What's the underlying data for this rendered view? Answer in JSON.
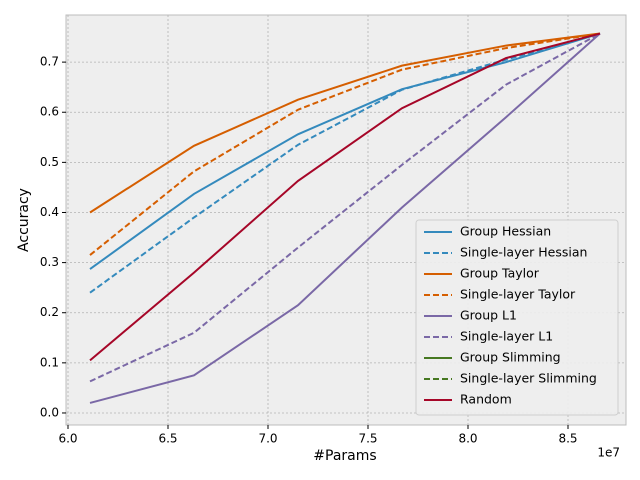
{
  "chart_data": {
    "type": "line",
    "xlabel": "#Params",
    "ylabel": "Accuracy",
    "x_offset_label": "1e7",
    "x": [
      61100000,
      66300000,
      71500000,
      76700000,
      81900000,
      86600000
    ],
    "series": [
      {
        "name": "Group Hessian",
        "color": "#348abd",
        "linestyle": "solid",
        "values": [
          0.287,
          0.437,
          0.556,
          0.646,
          0.7,
          0.757
        ]
      },
      {
        "name": "Single-layer Hessian",
        "color": "#348abd",
        "linestyle": "dashed",
        "values": [
          0.24,
          0.39,
          0.535,
          0.645,
          0.705,
          0.757
        ]
      },
      {
        "name": "Group Taylor",
        "color": "#d55e00",
        "linestyle": "solid",
        "values": [
          0.4,
          0.533,
          0.625,
          0.693,
          0.733,
          0.757
        ]
      },
      {
        "name": "Single-layer Taylor",
        "color": "#d55e00",
        "linestyle": "dashed",
        "values": [
          0.315,
          0.482,
          0.605,
          0.685,
          0.728,
          0.757
        ]
      },
      {
        "name": "Group L1",
        "color": "#7a68a6",
        "linestyle": "solid",
        "values": [
          0.02,
          0.075,
          0.215,
          0.41,
          0.59,
          0.757
        ]
      },
      {
        "name": "Single-layer L1",
        "color": "#7a68a6",
        "linestyle": "dashed",
        "values": [
          0.063,
          0.16,
          0.33,
          0.495,
          0.655,
          0.757
        ]
      },
      {
        "name": "Group Slimming",
        "color": "#467821",
        "linestyle": "solid",
        "values": [
          null,
          null,
          null,
          null,
          null,
          null
        ]
      },
      {
        "name": "Single-layer Slimming",
        "color": "#467821",
        "linestyle": "dashed",
        "values": [
          null,
          null,
          null,
          null,
          null,
          null
        ]
      },
      {
        "name": "Random",
        "color": "#a60628",
        "linestyle": "solid",
        "values": [
          0.105,
          0.28,
          0.463,
          0.608,
          0.708,
          0.757
        ]
      }
    ],
    "xlim": [
      59900000,
      87900000
    ],
    "xticks": [
      {
        "value": 60000000,
        "label": "6.0"
      },
      {
        "value": 65000000,
        "label": "6.5"
      },
      {
        "value": 70000000,
        "label": "7.0"
      },
      {
        "value": 75000000,
        "label": "7.5"
      },
      {
        "value": 80000000,
        "label": "8.0"
      },
      {
        "value": 85000000,
        "label": "8.5"
      }
    ],
    "ylim": [
      -0.024,
      0.794
    ],
    "yticks": [
      {
        "value": 0,
        "label": "0.0"
      },
      {
        "value": 0.1,
        "label": "0.1"
      },
      {
        "value": 0.2,
        "label": "0.2"
      },
      {
        "value": 0.3,
        "label": "0.3"
      },
      {
        "value": 0.4,
        "label": "0.4"
      },
      {
        "value": 0.5,
        "label": "0.5"
      },
      {
        "value": 0.6,
        "label": "0.6"
      },
      {
        "value": 0.7,
        "label": "0.7"
      }
    ],
    "grid": true,
    "legend": "lower right"
  }
}
